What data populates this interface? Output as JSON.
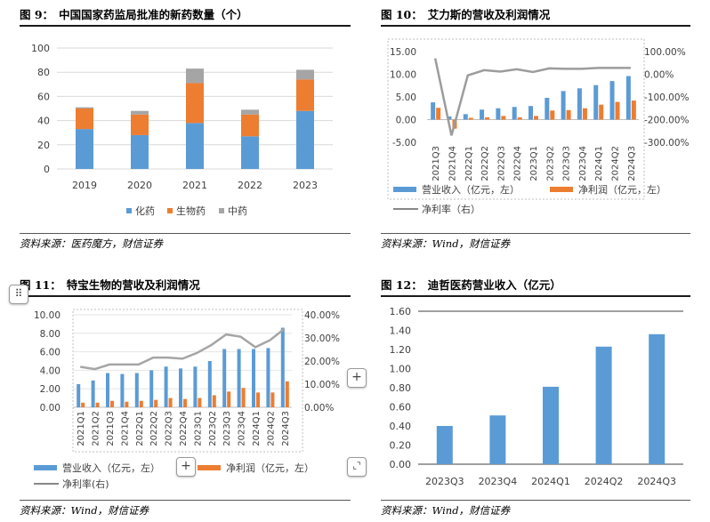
{
  "colors": {
    "blue": "#5b9bd5",
    "orange": "#ed7d31",
    "gray": "#a5a5a5",
    "lineGray": "#9c9c9c"
  },
  "panels": {
    "p1": {
      "title_num": "图 9：",
      "title": "中国国家药监局批准的新药数量（个）",
      "source": "资料来源：医药魔方，财信证券"
    },
    "p2": {
      "title_num": "图 10：",
      "title": "艾力斯的营收及利润情况",
      "source": "资料来源：Wind，财信证券"
    },
    "p3": {
      "title_num": "图 11：",
      "title": "特宝生物的营收及利润情况",
      "source": "资料来源：Wind，财信证券"
    },
    "p4": {
      "title_num": "图 12：",
      "title": "迪哲医药营业收入（亿元）",
      "source": "资料来源：Wind，财信证券"
    }
  },
  "chart_data": [
    {
      "id": "p1",
      "type": "bar",
      "stacked": true,
      "categories": [
        "2019",
        "2020",
        "2021",
        "2022",
        "2023"
      ],
      "series": [
        {
          "name": "化药",
          "color": "#5b9bd5",
          "values": [
            33,
            28,
            38,
            27,
            48
          ]
        },
        {
          "name": "生物药",
          "color": "#ed7d31",
          "values": [
            17,
            17,
            33,
            18,
            26
          ]
        },
        {
          "name": "中药",
          "color": "#a5a5a5",
          "values": [
            1,
            3,
            12,
            4,
            8
          ]
        }
      ],
      "ylim": [
        0,
        100
      ],
      "yticks": [
        "0",
        "20",
        "40",
        "60",
        "80",
        "100"
      ],
      "grid": true,
      "legend": "bottom"
    },
    {
      "id": "p2",
      "type": "bar",
      "categories": [
        "2021Q3",
        "2021Q4",
        "2022Q1",
        "2022Q2",
        "2022Q3",
        "2022Q4",
        "2023Q1",
        "2023Q2",
        "2023Q3",
        "2023Q4",
        "2024Q1",
        "2024Q2",
        "2024Q3"
      ],
      "series": [
        {
          "name": "营业收入（亿元，左）",
          "kind": "bar",
          "axis": "left",
          "color": "#5b9bd5",
          "values": [
            3.8,
            0.7,
            1.2,
            2.2,
            2.5,
            2.8,
            3.0,
            4.8,
            6.3,
            6.9,
            7.6,
            8.5,
            9.6
          ]
        },
        {
          "name": "净利润（亿元，左）",
          "kind": "bar",
          "axis": "left",
          "color": "#ed7d31",
          "values": [
            2.6,
            -2.0,
            0.4,
            0.5,
            0.8,
            0.5,
            0.8,
            2.0,
            2.1,
            2.5,
            3.3,
            3.9,
            4.2
          ]
        },
        {
          "name": "净利率（右）",
          "kind": "line",
          "axis": "right",
          "color": "#9c9c9c",
          "values": [
            70,
            -270,
            -5,
            18,
            12,
            22,
            10,
            26,
            24,
            24,
            28,
            28,
            28
          ]
        }
      ],
      "ylim_left": [
        -5,
        15
      ],
      "yticks_left": [
        "-5.00",
        "0.00",
        "5.00",
        "10.00",
        "15.00"
      ],
      "ylim_right": [
        -300,
        100
      ],
      "yticks_right": [
        "-300.00%",
        "-200.00%",
        "-100.00%",
        "0.00%",
        "100.00%"
      ],
      "legend": "bottom"
    },
    {
      "id": "p3",
      "type": "bar",
      "categories": [
        "2021Q1",
        "2021Q2",
        "2021Q3",
        "2021Q4",
        "2022Q1",
        "2022Q2",
        "2022Q3",
        "2022Q4",
        "2023Q1",
        "2023Q2",
        "2023Q3",
        "2023Q4",
        "2024Q1",
        "2024Q2",
        "2024Q3"
      ],
      "series": [
        {
          "name": "营业收入（亿元，左）",
          "kind": "bar",
          "axis": "left",
          "color": "#5b9bd5",
          "values": [
            2.5,
            2.9,
            3.7,
            3.6,
            3.7,
            4.0,
            4.4,
            4.2,
            4.4,
            5.0,
            6.3,
            6.3,
            6.3,
            6.4,
            8.6
          ]
        },
        {
          "name": "净利润（亿元，左）",
          "kind": "bar",
          "axis": "left",
          "color": "#ed7d31",
          "values": [
            0.5,
            0.5,
            0.7,
            0.6,
            0.7,
            0.8,
            1.0,
            0.9,
            1.0,
            1.3,
            1.7,
            2.1,
            1.6,
            1.6,
            2.8
          ]
        },
        {
          "name": "净利率(右)",
          "kind": "line",
          "axis": "right",
          "color": "#a5a5a5",
          "values": [
            17.5,
            16.5,
            18.5,
            18.5,
            18.5,
            21.5,
            21.5,
            21,
            23.5,
            27,
            31.5,
            30.5,
            26,
            29,
            34
          ]
        }
      ],
      "ylim_left": [
        0,
        10
      ],
      "yticks_left": [
        "0.00",
        "2.00",
        "4.00",
        "6.00",
        "8.00",
        "10.00"
      ],
      "ylim_right": [
        0,
        40
      ],
      "yticks_right": [
        "0.00%",
        "10.00%",
        "20.00%",
        "30.00%",
        "40.00%"
      ],
      "legend": "bottom"
    },
    {
      "id": "p4",
      "type": "bar",
      "categories": [
        "2023Q3",
        "2023Q4",
        "2024Q1",
        "2024Q2",
        "2024Q3"
      ],
      "series": [
        {
          "name": "营业收入",
          "color": "#5b9bd5",
          "values": [
            0.4,
            0.51,
            0.81,
            1.23,
            1.36
          ]
        }
      ],
      "ylim": [
        0,
        1.6
      ],
      "yticks": [
        "0.00",
        "0.20",
        "0.40",
        "0.60",
        "0.80",
        "1.00",
        "1.20",
        "1.40",
        "1.60"
      ],
      "legend": "none"
    }
  ],
  "ui": {
    "drag_handle_icon": "⠿",
    "plus_icon": "+",
    "resize_icon": "⌞⌝"
  }
}
